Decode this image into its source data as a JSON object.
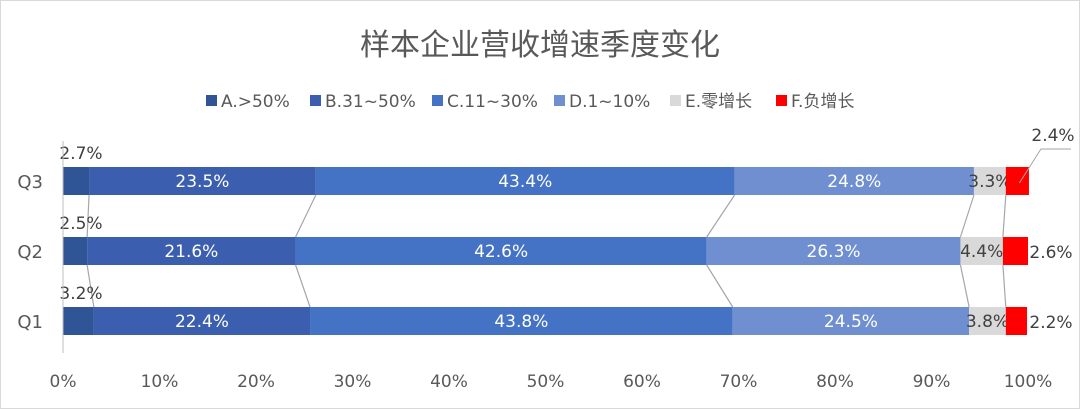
{
  "chart_data": {
    "type": "bar",
    "orientation": "horizontal",
    "stacked": "percent",
    "title": "样本企业营收增速季度变化",
    "categories": [
      "Q3",
      "Q2",
      "Q1"
    ],
    "series": [
      {
        "name": "A.>50%",
        "color": "#2f5597",
        "values": [
          2.7,
          2.5,
          3.2
        ]
      },
      {
        "name": "B.31~50%",
        "color": "#3b5fae",
        "values": [
          23.5,
          21.6,
          22.4
        ]
      },
      {
        "name": "C.11~30%",
        "color": "#4472c4",
        "values": [
          43.4,
          42.6,
          43.8
        ]
      },
      {
        "name": "D.1~10%",
        "color": "#6f8fd0",
        "values": [
          24.8,
          26.3,
          24.5
        ]
      },
      {
        "name": "E.零增长",
        "color": "#d9d9d9",
        "values": [
          3.3,
          4.4,
          3.8
        ]
      },
      {
        "name": "F.负增长",
        "color": "#ff0000",
        "values": [
          2.4,
          2.6,
          2.2
        ]
      }
    ],
    "data_labels": [
      [
        "2.7%",
        "23.5%",
        "43.4%",
        "24.8%",
        "3.3%",
        "2.4%"
      ],
      [
        "2.5%",
        "21.6%",
        "42.6%",
        "26.3%",
        "4.4%",
        "2.6%"
      ],
      [
        "3.2%",
        "22.4%",
        "43.8%",
        "24.5%",
        "3.8%",
        "2.2%"
      ]
    ],
    "x_ticks": [
      "0%",
      "10%",
      "20%",
      "30%",
      "40%",
      "50%",
      "60%",
      "70%",
      "80%",
      "90%",
      "100%"
    ],
    "xlim": [
      0,
      100
    ],
    "legend_position": "top",
    "grid": false,
    "series_lines": true
  }
}
